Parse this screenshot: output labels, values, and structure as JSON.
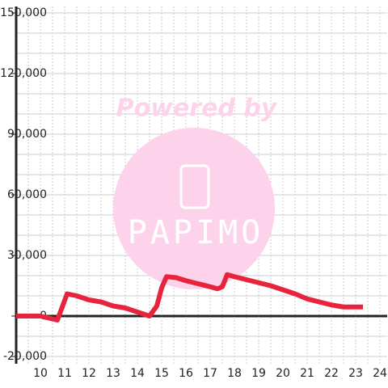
{
  "chart_data": {
    "type": "line",
    "watermark": [
      "Powered by",
      "PAPIMO"
    ],
    "x": [
      9,
      10,
      10.7,
      11.1,
      11.5,
      12,
      12.5,
      13,
      13.5,
      14,
      14.5,
      14.8,
      15,
      15.2,
      15.6,
      16,
      16.5,
      17,
      17.3,
      17.5,
      17.7,
      18,
      18.5,
      19,
      19.5,
      20,
      20.5,
      21,
      21.5,
      22,
      22.5,
      23,
      23.3
    ],
    "series": [
      {
        "color": "#e8243c",
        "values": [
          0,
          0,
          -2000,
          11000,
          10000,
          8000,
          7000,
          5000,
          4000,
          2000,
          0,
          5000,
          14000,
          19500,
          19000,
          17500,
          16000,
          14500,
          13500,
          14500,
          20500,
          19500,
          18000,
          16500,
          15000,
          13000,
          11000,
          8500,
          7000,
          5500,
          4500,
          4500,
          4500
        ]
      }
    ],
    "xlim": [
      9,
      24.3
    ],
    "xticks": [
      10,
      11,
      12,
      13,
      14,
      15,
      16,
      17,
      18,
      19,
      20,
      21,
      22,
      23,
      24
    ],
    "xminor": [
      9.5,
      10.5,
      11.5,
      12.5,
      13.5,
      14.5,
      15.5,
      16.5,
      17.5,
      18.5,
      19.5,
      20.5,
      21.5,
      22.5,
      23.5
    ],
    "ylim": [
      -20000,
      150000
    ],
    "yticks": [
      {
        "value": -20000,
        "label": "-20,000"
      },
      0,
      {
        "value": 30000,
        "label": "30,000"
      },
      {
        "value": 60000,
        "label": "60,000"
      },
      {
        "value": 90000,
        "label": "90,000"
      },
      {
        "value": 120000,
        "label": "120,000"
      },
      {
        "value": 150000,
        "label": "150,000"
      }
    ],
    "yminor": [
      -10000,
      10000,
      20000,
      40000,
      50000,
      70000,
      80000,
      100000,
      110000,
      130000,
      140000
    ],
    "grid": true
  }
}
